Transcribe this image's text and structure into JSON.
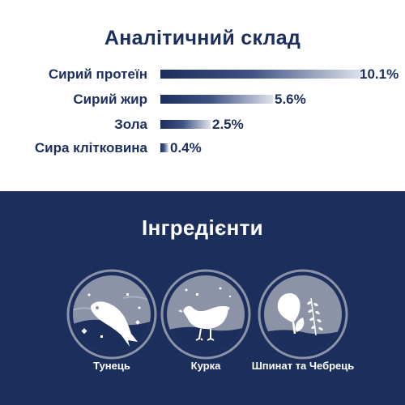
{
  "analysis": {
    "title": "Аналітичний склад",
    "rows": [
      {
        "label": "Сирий протеїн",
        "value_text": "10.1%",
        "value": 10.1
      },
      {
        "label": "Сирий жир",
        "value_text": "5.6%",
        "value": 5.6
      },
      {
        "label": "Зола",
        "value_text": "2.5%",
        "value": 2.5
      },
      {
        "label": "Сира клітковина",
        "value_text": "0.4%",
        "value": 0.4
      }
    ]
  },
  "ingredients": {
    "title": "Інгредієнти",
    "items": [
      {
        "label": "Тунець",
        "icon": "tuna-icon"
      },
      {
        "label": "Курка",
        "icon": "chicken-icon"
      },
      {
        "label": "Шпинат та Чебрець",
        "icon": "spinach-thyme-icon"
      }
    ]
  },
  "colors": {
    "navy": "#1b2e5c",
    "white": "#ffffff",
    "icon_grey": "#8c93a6"
  }
}
